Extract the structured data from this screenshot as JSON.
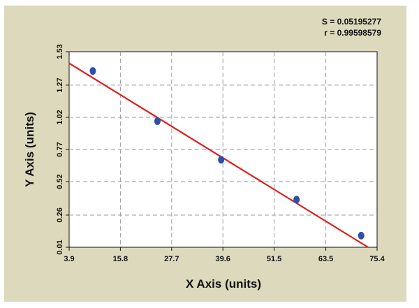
{
  "chart_data": {
    "type": "scatter",
    "xlabel": "X Axis (units)",
    "ylabel": "Y Axis (units)",
    "xlim": [
      3.9,
      75.4
    ],
    "ylim": [
      0.01,
      1.53
    ],
    "x_ticks": [
      3.9,
      15.8,
      27.7,
      39.6,
      51.5,
      63.5,
      75.4
    ],
    "x_tick_labels": [
      "3.9",
      "15.8",
      "27.7",
      "39.6",
      "51.5",
      "63.5",
      "75.4"
    ],
    "y_ticks": [
      0.01,
      0.26,
      0.52,
      0.77,
      1.02,
      1.27,
      1.53
    ],
    "y_tick_labels": [
      "0.01",
      "0.26",
      "0.52",
      "0.77",
      "1.02",
      "1.27",
      "1.53"
    ],
    "grid": true,
    "series": [
      {
        "points": [
          {
            "x": 9.4,
            "y": 1.38
          },
          {
            "x": 24.4,
            "y": 0.99
          },
          {
            "x": 39.2,
            "y": 0.69
          },
          {
            "x": 56.7,
            "y": 0.38
          },
          {
            "x": 71.7,
            "y": 0.1
          }
        ],
        "color": "#2f4fa8"
      }
    ],
    "fit_line": {
      "color": "#e01e1e",
      "points": [
        {
          "x": 3.9,
          "y": 1.44
        },
        {
          "x": 73.3,
          "y": 0.01
        }
      ]
    },
    "annotations": {
      "s_value": "S = 0.05195277",
      "r_value": "r = 0.99598579"
    }
  },
  "colors": {
    "outer_background": "#ddd9bd",
    "plot_background": "#ffffff",
    "grid": "#9a9a9a",
    "fit_line": "#e01e1e",
    "points": "#2f4fa8"
  }
}
